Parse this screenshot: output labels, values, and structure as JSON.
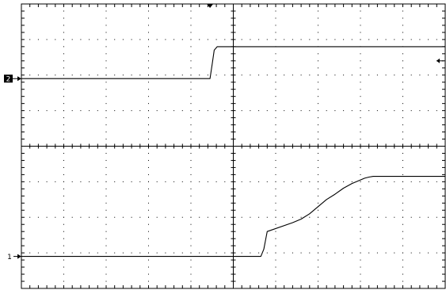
{
  "chart_data": {
    "type": "line",
    "title": "",
    "xlabel": "",
    "ylabel": "",
    "grid": true,
    "divisions": {
      "x": 10,
      "y": 8
    },
    "xlim": [
      0,
      10
    ],
    "ylim": [
      0,
      8
    ],
    "channel_markers": [
      {
        "label": "2",
        "level": 5.9,
        "style": "inverted"
      },
      {
        "label": "1",
        "level": 0.9,
        "style": "plain"
      }
    ],
    "trigger_position_div": 4.45,
    "right_arrow_level_div": 6.4,
    "series": [
      {
        "x": [
          0,
          4.45,
          4.5,
          4.55,
          4.62,
          10
        ],
        "y": [
          5.9,
          5.9,
          6.3,
          6.7,
          6.8,
          6.8
        ]
      },
      {
        "x": [
          0,
          5.65,
          5.72,
          5.8,
          6.4,
          6.6,
          6.8,
          7.0,
          7.2,
          7.4,
          7.6,
          7.8,
          8.0,
          8.1,
          8.2,
          8.3,
          8.4,
          8.5,
          10
        ],
        "y": [
          0.9,
          0.9,
          1.1,
          1.6,
          1.85,
          1.95,
          2.1,
          2.3,
          2.5,
          2.65,
          2.82,
          2.95,
          3.05,
          3.1,
          3.13,
          3.15,
          3.15,
          3.15,
          3.15
        ]
      }
    ]
  }
}
